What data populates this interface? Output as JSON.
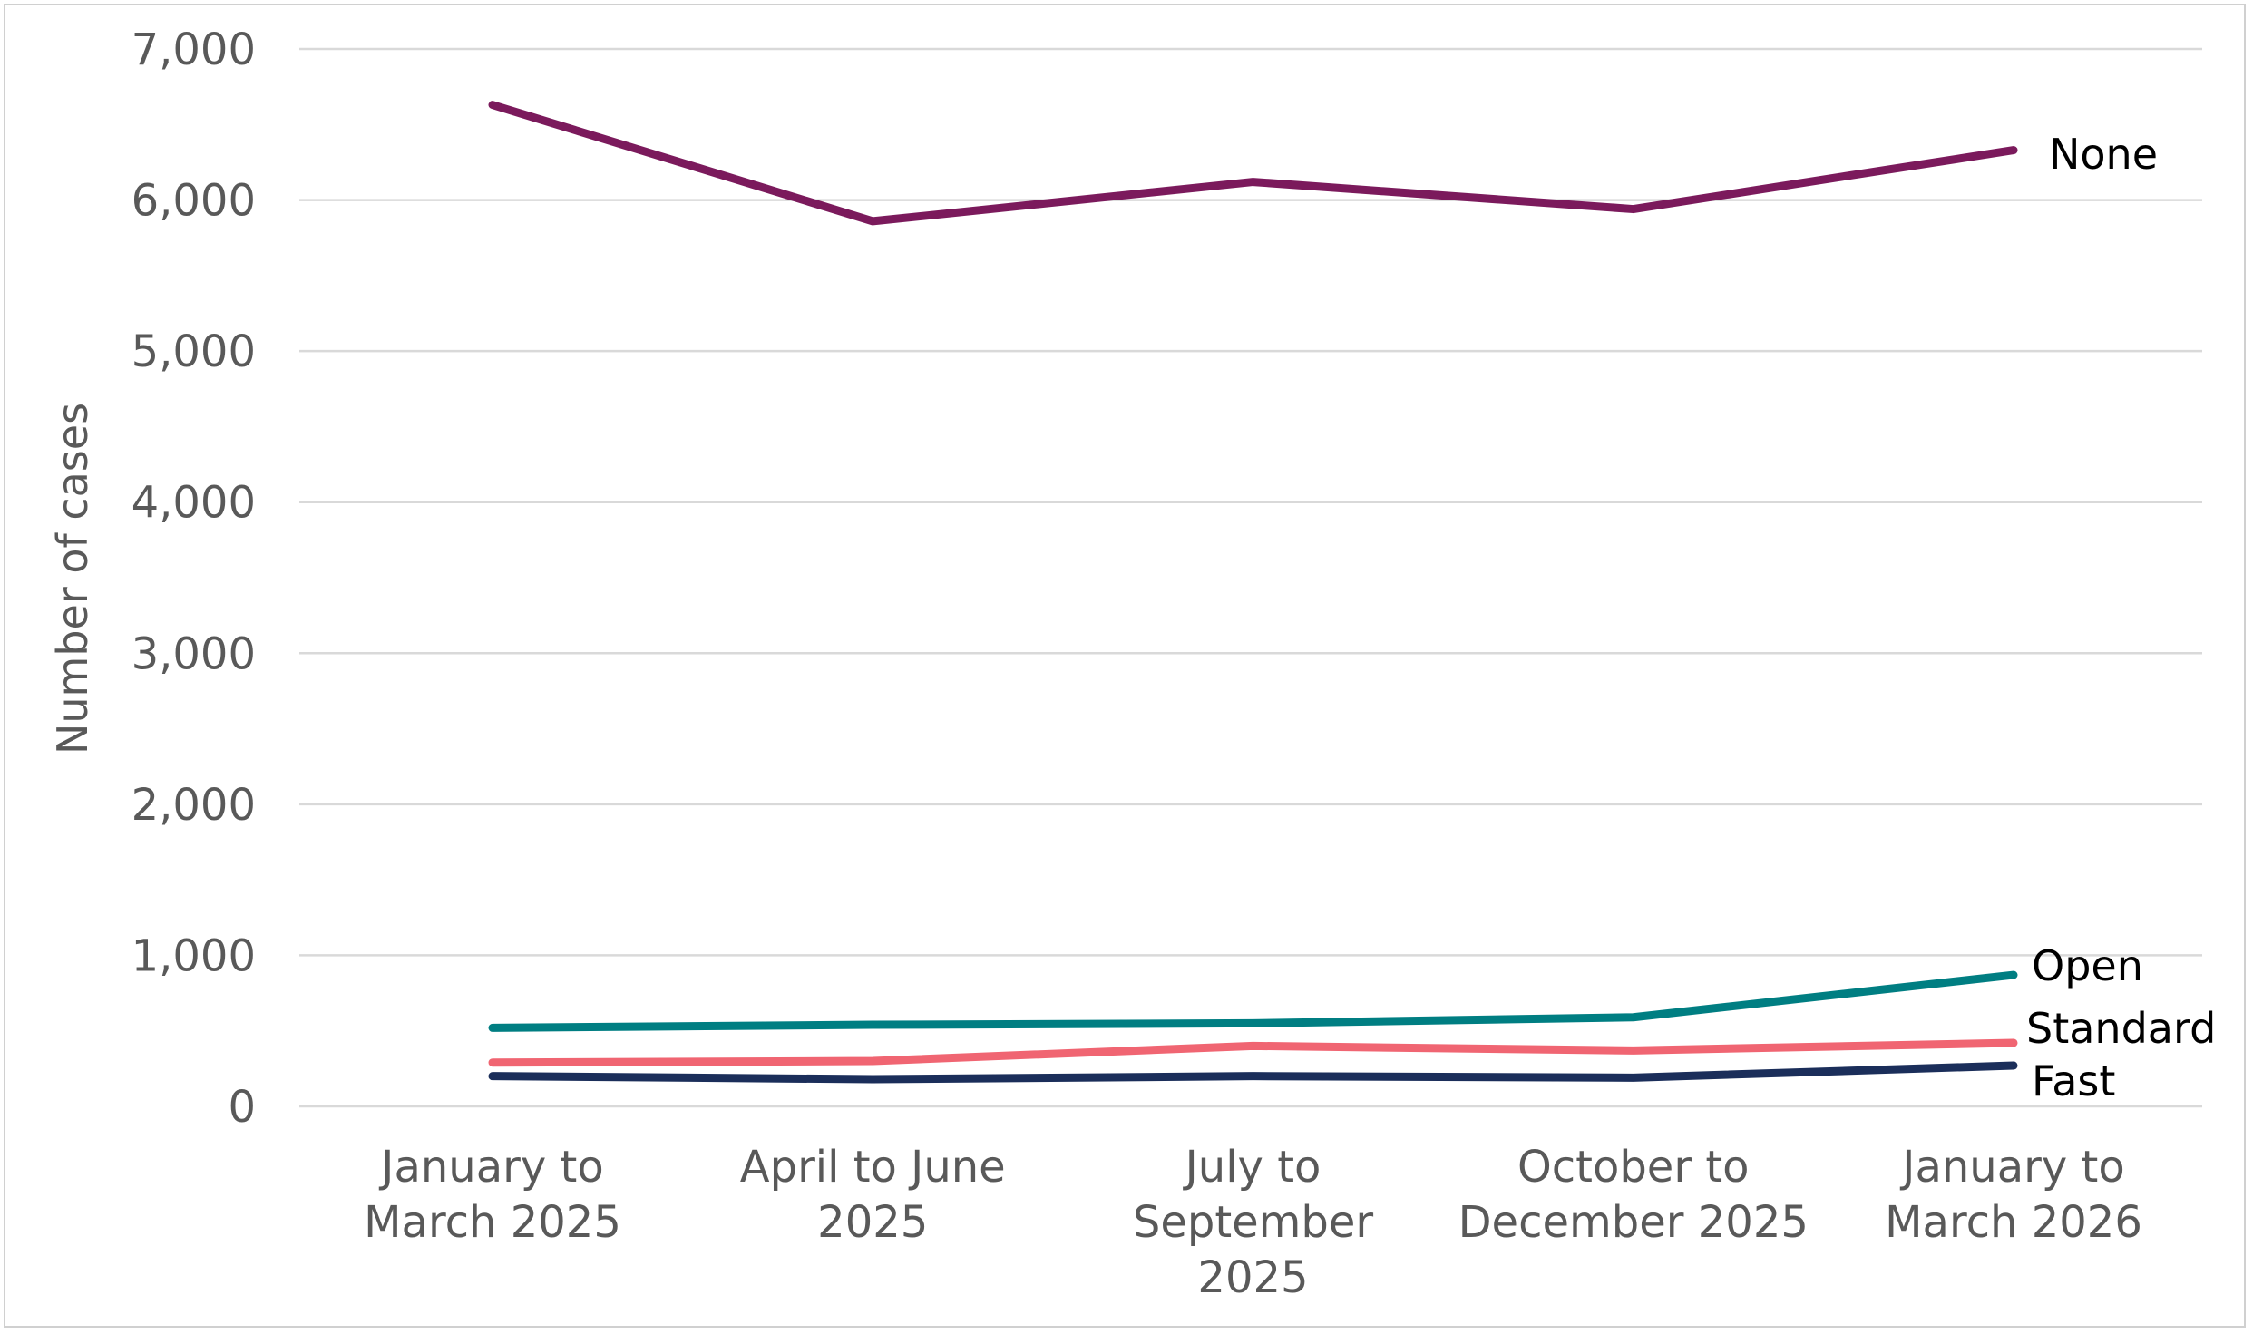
{
  "chart_data": {
    "type": "line",
    "title": "",
    "xlabel": "",
    "ylabel": "Number of cases",
    "ylim": [
      0,
      7000
    ],
    "yticks": [
      0,
      1000,
      2000,
      3000,
      4000,
      5000,
      6000,
      7000
    ],
    "ytick_labels": [
      "0",
      "1,000",
      "2,000",
      "3,000",
      "4,000",
      "5,000",
      "6,000",
      "7,000"
    ],
    "grid": true,
    "categories": [
      [
        "January to",
        "March 2025"
      ],
      [
        "April to June",
        "2025"
      ],
      [
        "July to",
        "September",
        "2025"
      ],
      [
        "October to",
        "December 2025"
      ],
      [
        "January to",
        "March 2026"
      ]
    ],
    "series": [
      {
        "name": "None",
        "color": "#7b1a5c",
        "values": [
          6630,
          5860,
          6120,
          5940,
          6330
        ]
      },
      {
        "name": "Open",
        "color": "#007e82",
        "values": [
          520,
          540,
          550,
          590,
          870
        ]
      },
      {
        "name": "Standard",
        "color": "#f06572",
        "values": [
          290,
          300,
          400,
          370,
          420
        ]
      },
      {
        "name": "Fast",
        "color": "#1b2e5a",
        "values": [
          200,
          180,
          200,
          190,
          270
        ]
      }
    ]
  }
}
